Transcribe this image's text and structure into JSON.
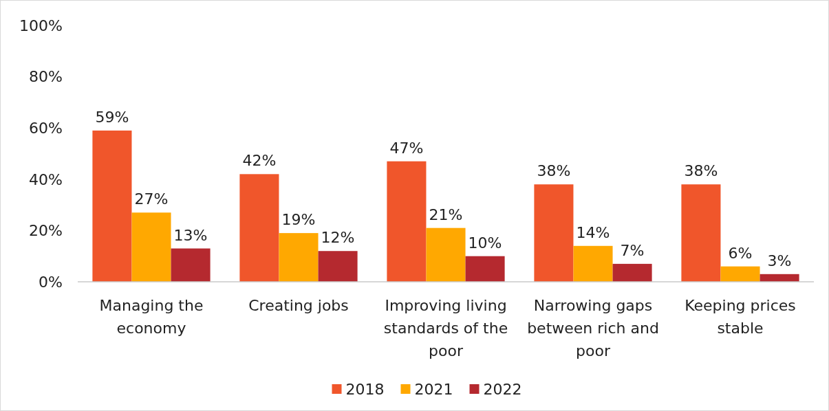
{
  "chart_data": {
    "type": "bar",
    "categories": [
      "Managing the economy",
      "Creating jobs",
      "Improving living standards of the poor",
      "Narrowing gaps between rich and poor",
      "Keeping prices stable"
    ],
    "series": [
      {
        "name": "2018",
        "color": "#f0562b",
        "values": [
          59,
          42,
          47,
          38,
          38
        ],
        "value_labels": [
          "59%",
          "42%",
          "47%",
          "38%",
          "38%"
        ]
      },
      {
        "name": "2021",
        "color": "#ffa801",
        "values": [
          27,
          19,
          21,
          14,
          6
        ],
        "value_labels": [
          "27%",
          "19%",
          "21%",
          "14%",
          "6%"
        ]
      },
      {
        "name": "2022",
        "color": "#b5292f",
        "values": [
          13,
          12,
          10,
          7,
          3
        ],
        "value_labels": [
          "13%",
          "12%",
          "10%",
          "7%",
          "3%"
        ]
      }
    ],
    "ylim": [
      0,
      100
    ],
    "yticks": [
      {
        "value": 0,
        "label": "0%"
      },
      {
        "value": 20,
        "label": "20%"
      },
      {
        "value": 40,
        "label": "40%"
      },
      {
        "value": 60,
        "label": "60%"
      },
      {
        "value": 80,
        "label": "80%"
      },
      {
        "value": 100,
        "label": "100%"
      }
    ],
    "grid": false,
    "legend": "bottom"
  }
}
